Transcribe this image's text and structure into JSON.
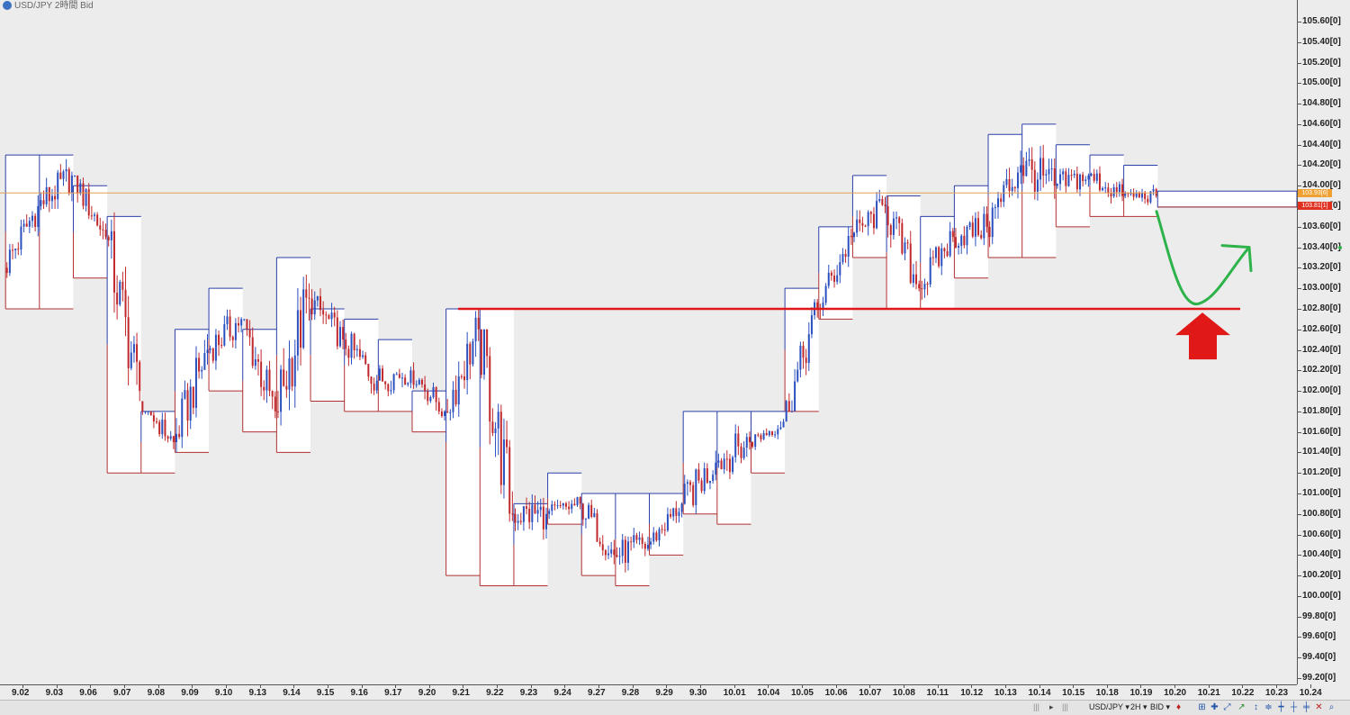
{
  "window": {
    "title": "USD/JPY 2時間 Bid",
    "logo_icon": "app-logo-icon"
  },
  "y_axis": {
    "labels": [
      "105.60[0]",
      "105.40[0]",
      "105.20[0]",
      "105.00[0]",
      "104.80[0]",
      "104.60[0]",
      "104.40[0]",
      "104.20[0]",
      "104.00[0]",
      "103.80[0]",
      "103.60[0]",
      "103.40[0]",
      "103.20[0]",
      "103.00[0]",
      "102.80[0]",
      "102.60[0]",
      "102.40[0]",
      "102.20[0]",
      "102.00[0]",
      "101.80[0]",
      "101.60[0]",
      "101.40[0]",
      "101.20[0]",
      "101.00[0]",
      "100.80[0]",
      "100.60[0]",
      "100.40[0]",
      "100.20[0]",
      "100.00[0]",
      "99.80[0]",
      "99.60[0]",
      "99.40[0]",
      "99.20[0]"
    ],
    "price_tags": [
      {
        "text": "103.93[6]",
        "color": "#f0a030"
      },
      {
        "text": "103.81[1]",
        "color": "#e03020"
      }
    ]
  },
  "x_axis": {
    "labels": [
      "9.02",
      "9.03",
      "9.06",
      "9.07",
      "9.08",
      "9.09",
      "9.10",
      "9.13",
      "9.14",
      "9.15",
      "9.16",
      "9.17",
      "9.20",
      "9.21",
      "9.22",
      "9.23",
      "9.24",
      "9.27",
      "9.28",
      "9.29",
      "9.30",
      "10.01",
      "10.04",
      "10.05",
      "10.06",
      "10.07",
      "10.08",
      "10.11",
      "10.12",
      "10.13",
      "10.14",
      "10.15",
      "10.18",
      "10.19",
      "10.20",
      "10.21",
      "10.22",
      "10.23",
      "10.24"
    ]
  },
  "status_bar": {
    "symbol": "USD/JPY",
    "timeframe": "2H",
    "price_type": "BID",
    "icons": [
      "scroll-left-icon",
      "scroll-right-icon",
      "pin-icon",
      "zoom-in-icon",
      "crosshair-icon",
      "cursor-icon",
      "line-tool-icon",
      "arrow-tool-icon",
      "close-icon",
      "search-icon"
    ]
  },
  "colors": {
    "up": "#2a4fbf",
    "down": "#c0282b",
    "resistance_line": "#e01818",
    "forecast_arrow": "#2db34a",
    "current_price_line": "#e0a050"
  },
  "chart_data": {
    "type": "candlestick",
    "title": "USD/JPY 2時間 Bid",
    "instrument": "USD/JPY",
    "timeframe": "2H",
    "ylim": [
      99.2,
      105.6
    ],
    "current_bid": 103.93,
    "current_ask_line": 103.81,
    "horizontal_line_level": 102.8,
    "sessions": [
      {
        "date": "9.02",
        "open": 103.2,
        "high": 104.0,
        "low": 103.1,
        "close": 103.8
      },
      {
        "date": "9.03",
        "open": 103.8,
        "high": 104.3,
        "low": 103.4,
        "close": 104.1
      },
      {
        "date": "9.06",
        "open": 104.1,
        "high": 104.1,
        "low": 103.3,
        "close": 103.5
      },
      {
        "date": "9.07",
        "open": 103.5,
        "high": 103.8,
        "low": 101.9,
        "close": 102.0
      },
      {
        "date": "9.08",
        "open": 101.9,
        "high": 101.8,
        "low": 101.2,
        "close": 101.5
      },
      {
        "date": "9.09",
        "open": 101.5,
        "high": 102.7,
        "low": 101.4,
        "close": 102.4
      },
      {
        "date": "9.10",
        "open": 102.4,
        "high": 103.0,
        "low": 102.1,
        "close": 102.7
      },
      {
        "date": "9.13",
        "open": 102.7,
        "high": 102.7,
        "low": 101.5,
        "close": 101.8
      },
      {
        "date": "9.14",
        "open": 101.8,
        "high": 103.3,
        "low": 101.4,
        "close": 102.9
      },
      {
        "date": "9.15",
        "open": 102.9,
        "high": 103.0,
        "low": 102.2,
        "close": 102.5
      },
      {
        "date": "9.16",
        "open": 102.5,
        "high": 102.8,
        "low": 101.9,
        "close": 102.1
      },
      {
        "date": "9.17",
        "open": 102.1,
        "high": 102.5,
        "low": 101.7,
        "close": 102.2
      },
      {
        "date": "9.20",
        "open": 102.2,
        "high": 102.3,
        "low": 101.6,
        "close": 101.8
      },
      {
        "date": "9.21",
        "open": 101.8,
        "high": 102.8,
        "low": 101.5,
        "close": 102.6
      },
      {
        "date": "9.22",
        "open": 102.6,
        "high": 102.6,
        "low": 100.3,
        "close": 100.8
      },
      {
        "date": "9.23",
        "open": 100.8,
        "high": 101.0,
        "low": 100.1,
        "close": 100.8
      },
      {
        "date": "9.24",
        "open": 100.8,
        "high": 101.2,
        "low": 100.7,
        "close": 100.9
      },
      {
        "date": "9.27",
        "open": 100.9,
        "high": 101.0,
        "low": 100.2,
        "close": 100.4
      },
      {
        "date": "9.28",
        "open": 100.4,
        "high": 100.9,
        "low": 100.1,
        "close": 100.5
      },
      {
        "date": "9.29",
        "open": 100.5,
        "high": 101.0,
        "low": 100.4,
        "close": 100.9
      },
      {
        "date": "9.30",
        "open": 100.9,
        "high": 101.8,
        "low": 100.8,
        "close": 101.3
      },
      {
        "date": "10.01",
        "open": 101.3,
        "high": 101.8,
        "low": 100.8,
        "close": 101.5
      },
      {
        "date": "10.04",
        "open": 101.5,
        "high": 101.8,
        "low": 101.3,
        "close": 101.7
      },
      {
        "date": "10.05",
        "open": 101.7,
        "high": 102.9,
        "low": 101.8,
        "close": 102.8
      },
      {
        "date": "10.06",
        "open": 102.8,
        "high": 103.6,
        "low": 102.7,
        "close": 103.5
      },
      {
        "date": "10.07",
        "open": 103.5,
        "high": 104.1,
        "low": 103.3,
        "close": 103.8
      },
      {
        "date": "10.08",
        "open": 103.8,
        "high": 103.9,
        "low": 102.8,
        "close": 103.0
      },
      {
        "date": "10.11",
        "open": 103.0,
        "high": 103.7,
        "low": 102.8,
        "close": 103.5
      },
      {
        "date": "10.12",
        "open": 103.5,
        "high": 104.0,
        "low": 103.2,
        "close": 103.6
      },
      {
        "date": "10.13",
        "open": 103.6,
        "high": 104.5,
        "low": 103.3,
        "close": 104.2
      },
      {
        "date": "10.14",
        "open": 104.2,
        "high": 104.5,
        "low": 103.4,
        "close": 104.0
      },
      {
        "date": "10.15",
        "open": 104.0,
        "high": 104.4,
        "low": 103.7,
        "close": 104.1
      },
      {
        "date": "10.18",
        "open": 104.1,
        "high": 104.3,
        "low": 103.7,
        "close": 103.9
      },
      {
        "date": "10.19",
        "open": 103.9,
        "high": 104.1,
        "low": 103.7,
        "close": 103.9
      }
    ],
    "daily_range_boxes": [
      {
        "date": "9.02",
        "high": 104.3,
        "low": 102.8
      },
      {
        "date": "9.03",
        "high": 104.3,
        "low": 102.8
      },
      {
        "date": "9.06",
        "high": 104.0,
        "low": 103.1
      },
      {
        "date": "9.07",
        "high": 103.7,
        "low": 101.2
      },
      {
        "date": "9.08",
        "high": 101.8,
        "low": 101.2
      },
      {
        "date": "9.09",
        "high": 102.6,
        "low": 101.4
      },
      {
        "date": "9.10",
        "high": 103.0,
        "low": 102.0
      },
      {
        "date": "9.13",
        "high": 102.6,
        "low": 101.6
      },
      {
        "date": "9.14",
        "high": 103.3,
        "low": 101.4
      },
      {
        "date": "9.15",
        "high": 102.8,
        "low": 101.9
      },
      {
        "date": "9.16",
        "high": 102.7,
        "low": 101.8
      },
      {
        "date": "9.17",
        "high": 102.5,
        "low": 101.8
      },
      {
        "date": "9.20",
        "high": 102.0,
        "low": 101.6
      },
      {
        "date": "9.21",
        "high": 102.8,
        "low": 100.2
      },
      {
        "date": "9.22",
        "high": 102.8,
        "low": 100.1
      },
      {
        "date": "9.23",
        "high": 100.9,
        "low": 100.1
      },
      {
        "date": "9.24",
        "high": 101.2,
        "low": 100.7
      },
      {
        "date": "9.27",
        "high": 101.0,
        "low": 100.2
      },
      {
        "date": "9.28",
        "high": 101.0,
        "low": 100.1
      },
      {
        "date": "9.29",
        "high": 101.0,
        "low": 100.4
      },
      {
        "date": "9.30",
        "high": 101.8,
        "low": 100.8
      },
      {
        "date": "10.01",
        "high": 101.8,
        "low": 100.7
      },
      {
        "date": "10.04",
        "high": 101.8,
        "low": 101.2
      },
      {
        "date": "10.05",
        "high": 103.0,
        "low": 101.8
      },
      {
        "date": "10.06",
        "high": 103.6,
        "low": 102.7
      },
      {
        "date": "10.07",
        "high": 104.1,
        "low": 103.3
      },
      {
        "date": "10.08",
        "high": 103.9,
        "low": 102.8
      },
      {
        "date": "10.11",
        "high": 103.7,
        "low": 102.8
      },
      {
        "date": "10.12",
        "high": 104.0,
        "low": 103.1
      },
      {
        "date": "10.13",
        "high": 104.5,
        "low": 103.3
      },
      {
        "date": "10.14",
        "high": 104.6,
        "low": 103.3
      },
      {
        "date": "10.15",
        "high": 104.4,
        "low": 103.6
      },
      {
        "date": "10.18",
        "high": 104.3,
        "low": 103.7
      },
      {
        "date": "10.19",
        "high": 104.2,
        "low": 103.7
      }
    ],
    "annotations": [
      {
        "type": "horizontal-line",
        "level": 102.8,
        "color": "#e01818"
      },
      {
        "type": "up-arrow-shape",
        "level": 102.5,
        "color": "#e01818"
      },
      {
        "type": "forecast-curve",
        "points": [
          [
            103.75,
            103.0,
            102.85,
            103.4
          ]
        ],
        "color": "#2db34a"
      }
    ]
  }
}
